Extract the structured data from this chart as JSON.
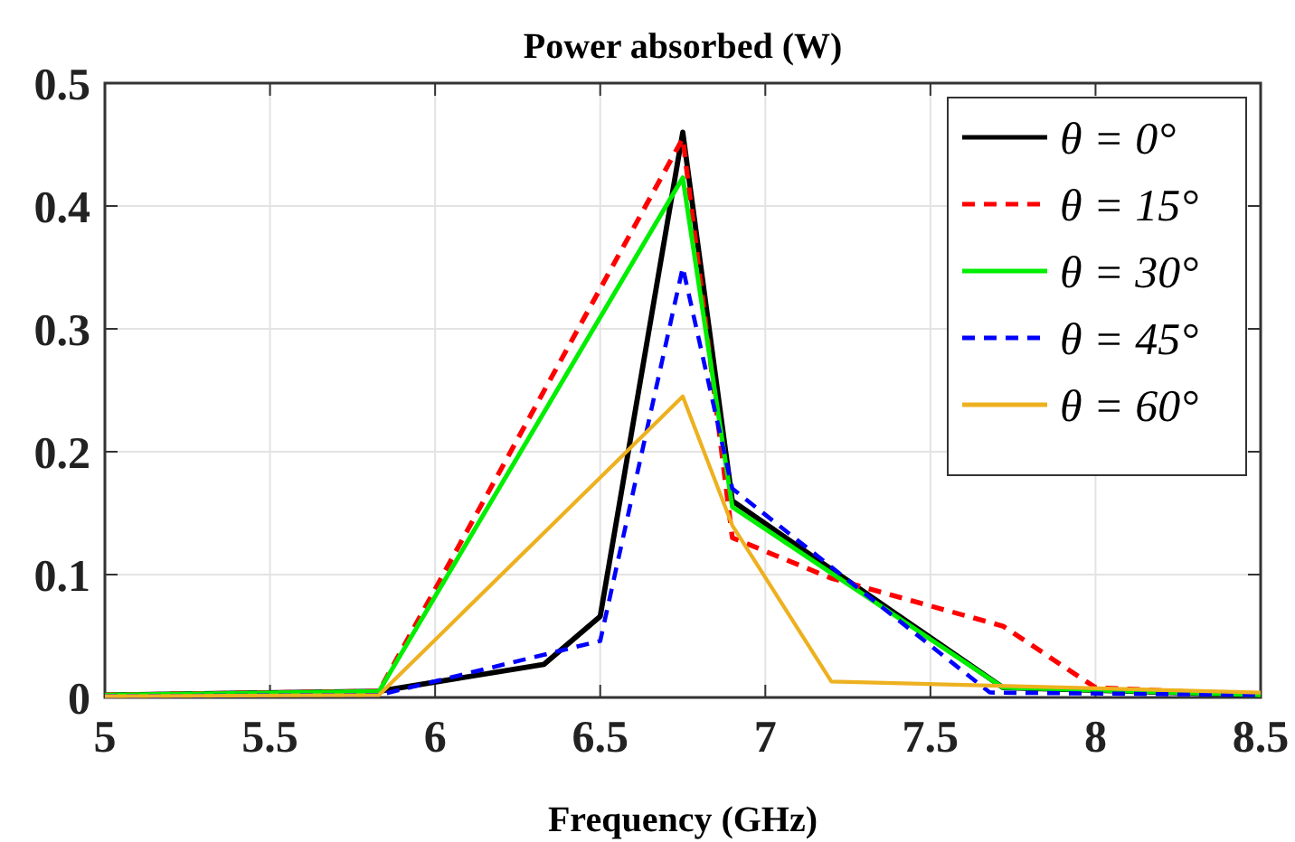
{
  "chart_data": {
    "type": "line",
    "title": "Power absorbed (W)",
    "xlabel": "Frequency (GHz)",
    "xlim": [
      5,
      8.5
    ],
    "xticks": [
      5,
      5.5,
      6,
      6.5,
      7,
      7.5,
      8,
      8.5
    ],
    "ylim": [
      0,
      0.5
    ],
    "yticks": [
      0,
      0.1,
      0.2,
      0.3,
      0.4,
      0.5
    ],
    "grid": true,
    "legend": "top right",
    "marker": "none",
    "series": [
      {
        "name": "θ = 0°",
        "color": "#000000",
        "line_style": "solid",
        "x": [
          5,
          5.83,
          6.33,
          6.5,
          6.75,
          6.9,
          7.72,
          8.5
        ],
        "values": [
          0.002,
          0.005,
          0.027,
          0.066,
          0.46,
          0.16,
          0.008,
          0.002
        ]
      },
      {
        "name": "θ = 15°",
        "color": "#ff0000",
        "line_style": "dashed",
        "x": [
          5,
          5.83,
          6.75,
          6.9,
          7.2,
          7.72,
          8,
          8.5
        ],
        "values": [
          0.002,
          0.005,
          0.455,
          0.13,
          0.097,
          0.058,
          0.008,
          0.002
        ]
      },
      {
        "name": "θ = 30°",
        "color": "#00ee00",
        "line_style": "solid",
        "x": [
          5,
          5.83,
          6.75,
          6.9,
          7.72,
          8.5
        ],
        "values": [
          0.002,
          0.005,
          0.423,
          0.155,
          0.008,
          0.002
        ]
      },
      {
        "name": "θ = 45°",
        "color": "#0000ff",
        "line_style": "dashed",
        "x": [
          5,
          5.83,
          6.5,
          6.75,
          6.9,
          7.68,
          8.5
        ],
        "values": [
          0.001,
          0.002,
          0.046,
          0.35,
          0.17,
          0.004,
          0.002
        ]
      },
      {
        "name": "θ = 60°",
        "color": "#edb120",
        "line_style": "solid",
        "x": [
          5,
          5.83,
          6.75,
          6.9,
          7.2,
          8.5
        ],
        "values": [
          0.001,
          0.002,
          0.245,
          0.14,
          0.013,
          0.004
        ]
      }
    ]
  }
}
